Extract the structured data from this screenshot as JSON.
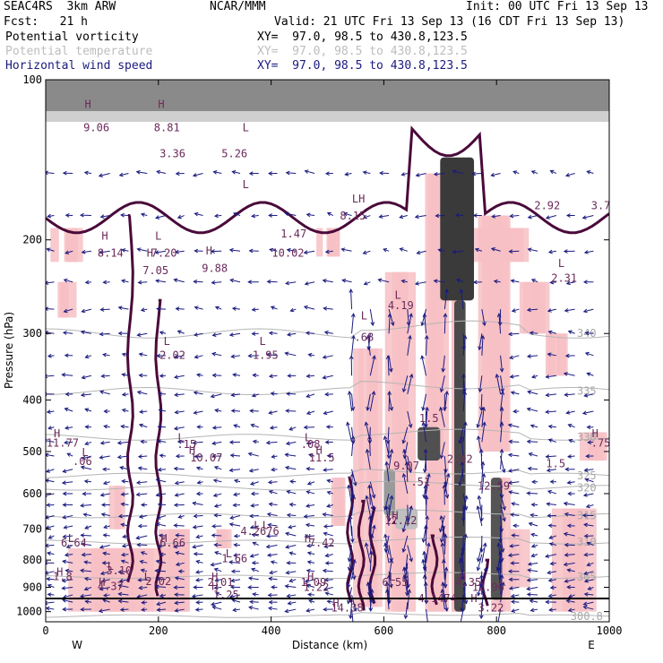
{
  "header": {
    "model": "SEAC4RS  3km ARW",
    "center": "NCAR/MMM",
    "init": "Init: 00 UTC Fri 13 Sep 13",
    "fcst": "Fcst:   21 h",
    "valid": "Valid: 21 UTC Fri 13 Sep 13 (16 CDT Fri 13 Sep 13)"
  },
  "legend": [
    {
      "label": "Potential vorticity",
      "xy": "XY=  97.0, 98.5 to 430.8,123.5",
      "color": "#000000"
    },
    {
      "label": "Potential temperature",
      "xy": "XY=  97.0, 98.5 to 430.8,123.5",
      "color": "#bdbdbd"
    },
    {
      "label": "Horizontal wind speed",
      "xy": "XY=  97.0, 98.5 to 430.8,123.5",
      "color": "#1a1a80"
    }
  ],
  "chart_data": {
    "type": "heatmap",
    "xlabel": "Distance (km)",
    "ylabel": "Pressure (hPa)",
    "xlim": [
      0,
      1000
    ],
    "ylim": [
      1045,
      100
    ],
    "y_scale": "pressure (log-like)",
    "x_ticks": [
      0,
      200,
      400,
      600,
      800,
      1000
    ],
    "y_ticks": [
      100,
      200,
      300,
      400,
      500,
      600,
      700,
      800,
      900,
      1000
    ],
    "x_end_labels": {
      "left": "W",
      "right": "E"
    },
    "isentropes": [
      {
        "label": "340",
        "p": 300
      },
      {
        "label": "335",
        "p": 385
      },
      {
        "label": "330",
        "p": 470
      },
      {
        "label": "325",
        "p": 555
      },
      {
        "label": "320",
        "p": 585
      },
      {
        "label": "315",
        "p": 660
      },
      {
        "label": "310",
        "p": 740
      },
      {
        "label": "305",
        "p": 860
      },
      {
        "label": "300.8",
        "p": 1020
      }
    ],
    "annotations": [
      {
        "text": "H",
        "x": 75,
        "p": 113
      },
      {
        "text": "9.06",
        "x": 90,
        "p": 125
      },
      {
        "text": "H",
        "x": 205,
        "p": 113
      },
      {
        "text": "8.81",
        "x": 215,
        "p": 125
      },
      {
        "text": "L",
        "x": 355,
        "p": 125
      },
      {
        "text": "5.26",
        "x": 335,
        "p": 140
      },
      {
        "text": "L",
        "x": 355,
        "p": 160
      },
      {
        "text": "3.36",
        "x": 225,
        "p": 140
      },
      {
        "text": "LH",
        "x": 555,
        "p": 170
      },
      {
        "text": "8.15",
        "x": 545,
        "p": 183
      },
      {
        "text": "1.47",
        "x": 440,
        "p": 198
      },
      {
        "text": "10.02",
        "x": 430,
        "p": 215
      },
      {
        "text": "H",
        "x": 105,
        "p": 200
      },
      {
        "text": "8.14",
        "x": 115,
        "p": 215
      },
      {
        "text": "L",
        "x": 200,
        "p": 200
      },
      {
        "text": "H",
        "x": 185,
        "p": 215
      },
      {
        "text": "7.20",
        "x": 210,
        "p": 215
      },
      {
        "text": "7.05",
        "x": 195,
        "p": 232
      },
      {
        "text": "H",
        "x": 290,
        "p": 213
      },
      {
        "text": "9.88",
        "x": 300,
        "p": 230
      },
      {
        "text": "4.19",
        "x": 630,
        "p": 270
      },
      {
        "text": "L",
        "x": 625,
        "p": 258
      },
      {
        "text": "L",
        "x": 215,
        "p": 315
      },
      {
        "text": "2.02",
        "x": 225,
        "p": 335
      },
      {
        "text": "L",
        "x": 385,
        "p": 315
      },
      {
        "text": "1.95",
        "x": 390,
        "p": 335
      },
      {
        "text": "L",
        "x": 565,
        "p": 282
      },
      {
        "text": ".68",
        "x": 565,
        "p": 310
      },
      {
        "text": "L",
        "x": 915,
        "p": 225
      },
      {
        "text": "2.31",
        "x": 920,
        "p": 240
      },
      {
        "text": "2.92",
        "x": 890,
        "p": 175
      },
      {
        "text": "3.7",
        "x": 985,
        "p": 175
      },
      {
        "text": "H",
        "x": 20,
        "p": 470
      },
      {
        "text": "11.77",
        "x": 30,
        "p": 490
      },
      {
        "text": "L",
        "x": 70,
        "p": 510
      },
      {
        "text": ".06",
        "x": 65,
        "p": 530
      },
      {
        "text": "L",
        "x": 240,
        "p": 478
      },
      {
        "text": ".15",
        "x": 250,
        "p": 492
      },
      {
        "text": "H",
        "x": 260,
        "p": 505
      },
      {
        "text": "10.07",
        "x": 285,
        "p": 522
      },
      {
        "text": "L",
        "x": 465,
        "p": 478
      },
      {
        "text": ".08",
        "x": 470,
        "p": 492
      },
      {
        "text": "H",
        "x": 485,
        "p": 505
      },
      {
        "text": "11.5",
        "x": 490,
        "p": 522
      },
      {
        "text": "H",
        "x": 975,
        "p": 470
      },
      {
        "text": ".75",
        "x": 985,
        "p": 490
      },
      {
        "text": "1.5",
        "x": 905,
        "p": 535
      },
      {
        "text": "L",
        "x": 390,
        "p": 700
      },
      {
        "text": "L",
        "x": 375,
        "p": 700
      },
      {
        "text": "4.2676",
        "x": 380,
        "p": 717
      },
      {
        "text": "H",
        "x": 620,
        "p": 670
      },
      {
        "text": "12.12",
        "x": 630,
        "p": 685
      },
      {
        "text": "H",
        "x": 465,
        "p": 740
      },
      {
        "text": "7.42",
        "x": 490,
        "p": 755
      },
      {
        "text": "L",
        "x": 45,
        "p": 740
      },
      {
        "text": "6.64",
        "x": 50,
        "p": 755
      },
      {
        "text": "H",
        "x": 210,
        "p": 740
      },
      {
        "text": "6.66",
        "x": 225,
        "p": 755
      },
      {
        "text": "L",
        "x": 325,
        "p": 790
      },
      {
        "text": "1.66",
        "x": 335,
        "p": 808
      },
      {
        "text": "L",
        "x": 115,
        "p": 835
      },
      {
        "text": "3.10",
        "x": 130,
        "p": 850
      },
      {
        "text": "H",
        "x": 25,
        "p": 855
      },
      {
        "text": "1.8",
        "x": 30,
        "p": 872
      },
      {
        "text": "H",
        "x": 100,
        "p": 895
      },
      {
        "text": "4.37",
        "x": 115,
        "p": 910
      },
      {
        "text": "L",
        "x": 180,
        "p": 875
      },
      {
        "text": "2.02",
        "x": 200,
        "p": 892
      },
      {
        "text": "H",
        "x": 300,
        "p": 875
      },
      {
        "text": "2.01",
        "x": 310,
        "p": 895
      },
      {
        "text": "H",
        "x": 300,
        "p": 910
      },
      {
        "text": "1.25",
        "x": 320,
        "p": 945
      },
      {
        "text": "H",
        "x": 470,
        "p": 875
      },
      {
        "text": "1.09",
        "x": 475,
        "p": 895
      },
      {
        "text": "1.22",
        "x": 480,
        "p": 915
      },
      {
        "text": "L",
        "x": 615,
        "p": 875
      },
      {
        "text": "6.55",
        "x": 620,
        "p": 895
      },
      {
        "text": "H",
        "x": 740,
        "p": 875
      },
      {
        "text": "4.35",
        "x": 750,
        "p": 895
      },
      {
        "text": "12.96",
        "x": 785,
        "p": 915
      },
      {
        "text": "4.1474",
        "x": 695,
        "p": 960
      },
      {
        "text": "H",
        "x": 760,
        "p": 960
      },
      {
        "text": "H",
        "x": 515,
        "p": 980
      },
      {
        "text": "14.38",
        "x": 535,
        "p": 1000
      },
      {
        "text": "3.22",
        "x": 790,
        "p": 1000
      },
      {
        "text": "12.59",
        "x": 795,
        "p": 590
      },
      {
        "text": "9.07",
        "x": 640,
        "p": 540
      },
      {
        "text": ".51",
        "x": 665,
        "p": 580
      },
      {
        "text": "2.02",
        "x": 735,
        "p": 525
      },
      {
        "text": "1.5",
        "x": 680,
        "p": 440
      }
    ]
  }
}
